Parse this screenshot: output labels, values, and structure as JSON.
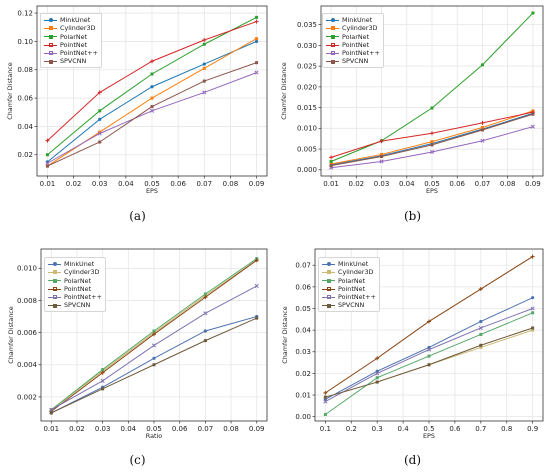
{
  "colors": {
    "MinkUnet": "#1f77b4",
    "Cylinder3D": "#ff7f0e",
    "PolarNet": "#2ca02c",
    "PointNet": "#d62728",
    "PointNet++": "#9467bd",
    "SPVCNN": "#8c564b",
    "d_MinkUnet": "#4c72b0",
    "d_Cylinder3D": "#ccb974",
    "d_PolarNet": "#55a868",
    "d_PointNet": "#8b4513",
    "d_PointNet++": "#8172b2",
    "d_SPVCNN": "#6e5a3c"
  },
  "chart_data": [
    {
      "id": "a",
      "caption": "(a)",
      "type": "line",
      "xlabel": "EPS",
      "ylabel": "Chamfer Distance",
      "x": [
        0.01,
        0.03,
        0.05,
        0.07,
        0.09
      ],
      "xticks": [
        "0.01",
        "0.02",
        "0.03",
        "0.04",
        "0.05",
        "0.06",
        "0.07",
        "0.08",
        "0.09"
      ],
      "xlim": [
        0.006,
        0.094
      ],
      "ylim": [
        0.005,
        0.125
      ],
      "yticks": [
        "0.02",
        "0.04",
        "0.06",
        "0.08",
        "0.10",
        "0.12"
      ],
      "legend": "top-left",
      "series": [
        {
          "name": "MinkUnet",
          "values": [
            0.015,
            0.045,
            0.068,
            0.084,
            0.1
          ]
        },
        {
          "name": "Cylinder3D",
          "values": [
            0.012,
            0.036,
            0.06,
            0.081,
            0.102
          ]
        },
        {
          "name": "PolarNet",
          "values": [
            0.02,
            0.051,
            0.077,
            0.098,
            0.117
          ]
        },
        {
          "name": "PointNet",
          "values": [
            0.03,
            0.064,
            0.086,
            0.101,
            0.114
          ]
        },
        {
          "name": "PointNet++",
          "values": [
            0.014,
            0.035,
            0.051,
            0.064,
            0.078
          ]
        },
        {
          "name": "SPVCNN",
          "values": [
            0.012,
            0.029,
            0.054,
            0.072,
            0.085
          ]
        }
      ]
    },
    {
      "id": "b",
      "caption": "(b)",
      "type": "line",
      "xlabel": "EPS",
      "ylabel": "Chamfer Distance",
      "x": [
        0.01,
        0.03,
        0.05,
        0.07,
        0.09
      ],
      "xticks": [
        "0.01",
        "0.02",
        "0.03",
        "0.04",
        "0.05",
        "0.06",
        "0.07",
        "0.08",
        "0.09"
      ],
      "xlim": [
        0.006,
        0.094
      ],
      "ylim": [
        -0.0015,
        0.0395
      ],
      "yticks": [
        "0.000",
        "0.005",
        "0.010",
        "0.015",
        "0.020",
        "0.025",
        "0.030",
        "0.035"
      ],
      "legend": "top-left",
      "series": [
        {
          "name": "MinkUnet",
          "values": [
            0.0012,
            0.0034,
            0.0063,
            0.0098,
            0.0136
          ]
        },
        {
          "name": "Cylinder3D",
          "values": [
            0.0014,
            0.0037,
            0.0068,
            0.0102,
            0.0142
          ]
        },
        {
          "name": "PolarNet",
          "values": [
            0.002,
            0.007,
            0.0149,
            0.0253,
            0.0378
          ]
        },
        {
          "name": "PointNet",
          "values": [
            0.003,
            0.0069,
            0.0088,
            0.0113,
            0.0139
          ]
        },
        {
          "name": "PointNet++",
          "values": [
            0.0005,
            0.002,
            0.0043,
            0.007,
            0.0104
          ]
        },
        {
          "name": "SPVCNN",
          "values": [
            0.001,
            0.0032,
            0.006,
            0.0096,
            0.0134
          ]
        }
      ]
    },
    {
      "id": "c",
      "caption": "(c)",
      "type": "line",
      "xlabel": "Ratio",
      "ylabel": "Chamfer Distance",
      "x": [
        0.01,
        0.03,
        0.05,
        0.07,
        0.09
      ],
      "xticks": [
        "0.01",
        "0.02",
        "0.03",
        "0.04",
        "0.05",
        "0.06",
        "0.07",
        "0.08",
        "0.09"
      ],
      "xlim": [
        0.006,
        0.094
      ],
      "ylim": [
        0.0005,
        0.0112
      ],
      "yticks": [
        "0.002",
        "0.004",
        "0.006",
        "0.008",
        "0.010"
      ],
      "legend": "top-left",
      "series": [
        {
          "name": "MinkUnet",
          "values": [
            0.001,
            0.0026,
            0.0044,
            0.0061,
            0.007
          ]
        },
        {
          "name": "Cylinder3D",
          "values": [
            0.0012,
            0.0036,
            0.006,
            0.0083,
            0.0105
          ]
        },
        {
          "name": "PolarNet",
          "values": [
            0.0012,
            0.0037,
            0.0061,
            0.0084,
            0.0106
          ]
        },
        {
          "name": "PointNet",
          "values": [
            0.0011,
            0.0035,
            0.0059,
            0.0082,
            0.0105
          ]
        },
        {
          "name": "PointNet++",
          "values": [
            0.0012,
            0.003,
            0.0052,
            0.0072,
            0.0089
          ]
        },
        {
          "name": "SPVCNN",
          "values": [
            0.001,
            0.0025,
            0.004,
            0.0055,
            0.0069
          ]
        }
      ]
    },
    {
      "id": "d",
      "caption": "(d)",
      "type": "line",
      "xlabel": "EPS",
      "ylabel": "Chamfer Distance",
      "x": [
        0.1,
        0.3,
        0.5,
        0.7,
        0.9
      ],
      "xticks": [
        "0.1",
        "0.2",
        "0.3",
        "0.4",
        "0.5",
        "0.6",
        "0.7",
        "0.8",
        "0.9"
      ],
      "xlim": [
        0.06,
        0.94
      ],
      "ylim": [
        -0.002,
        0.0775
      ],
      "yticks": [
        "0.00",
        "0.01",
        "0.02",
        "0.03",
        "0.04",
        "0.05",
        "0.06",
        "0.07"
      ],
      "legend": "top-left",
      "series": [
        {
          "name": "MinkUnet",
          "values": [
            0.008,
            0.021,
            0.032,
            0.044,
            0.055
          ]
        },
        {
          "name": "Cylinder3D",
          "values": [
            0.009,
            0.016,
            0.024,
            0.032,
            0.04
          ]
        },
        {
          "name": "PolarNet",
          "values": [
            0.001,
            0.018,
            0.028,
            0.038,
            0.048
          ]
        },
        {
          "name": "PointNet",
          "values": [
            0.011,
            0.027,
            0.044,
            0.059,
            0.074
          ]
        },
        {
          "name": "PointNet++",
          "values": [
            0.007,
            0.02,
            0.031,
            0.041,
            0.05
          ]
        },
        {
          "name": "SPVCNN",
          "values": [
            0.009,
            0.016,
            0.024,
            0.033,
            0.041
          ]
        }
      ]
    }
  ]
}
